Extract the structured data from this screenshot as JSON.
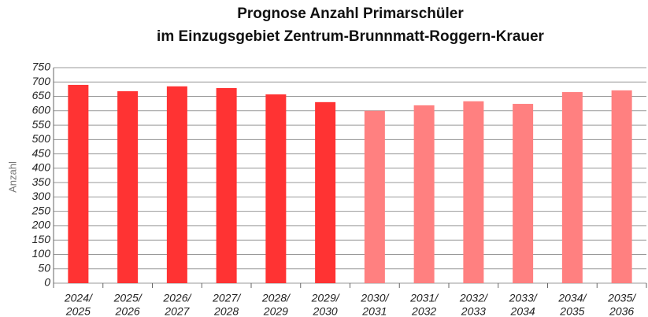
{
  "chart_data": {
    "type": "bar",
    "title": [
      "Prognose Anzahl Primarschüler",
      "im Einzugsgebiet Zentrum-Brunnmatt-Roggern-Krauer"
    ],
    "y_label": "Anzahl",
    "categories": [
      [
        "2024/",
        "2025"
      ],
      [
        "2025/",
        "2026"
      ],
      [
        "2026/",
        "2027"
      ],
      [
        "2027/",
        "2028"
      ],
      [
        "2028/",
        "2029"
      ],
      [
        "2029/",
        "2030"
      ],
      [
        "2030/",
        "2031"
      ],
      [
        "2031/",
        "2032"
      ],
      [
        "2032/",
        "2033"
      ],
      [
        "2033/",
        "2034"
      ],
      [
        "2034/",
        "2035"
      ],
      [
        "2035/",
        "2036"
      ]
    ],
    "values": [
      690,
      668,
      685,
      679,
      657,
      630,
      600,
      619,
      633,
      624,
      665,
      671
    ],
    "colors": [
      "#ff3333",
      "#ff3333",
      "#ff3333",
      "#ff3333",
      "#ff3333",
      "#ff3333",
      "#ff8080",
      "#ff8080",
      "#ff8080",
      "#ff8080",
      "#ff8080",
      "#ff8080"
    ],
    "ylim": [
      0,
      750
    ],
    "yticks": [
      0,
      50,
      100,
      150,
      200,
      250,
      300,
      350,
      400,
      450,
      500,
      550,
      600,
      650,
      700,
      750
    ],
    "grid": true
  }
}
